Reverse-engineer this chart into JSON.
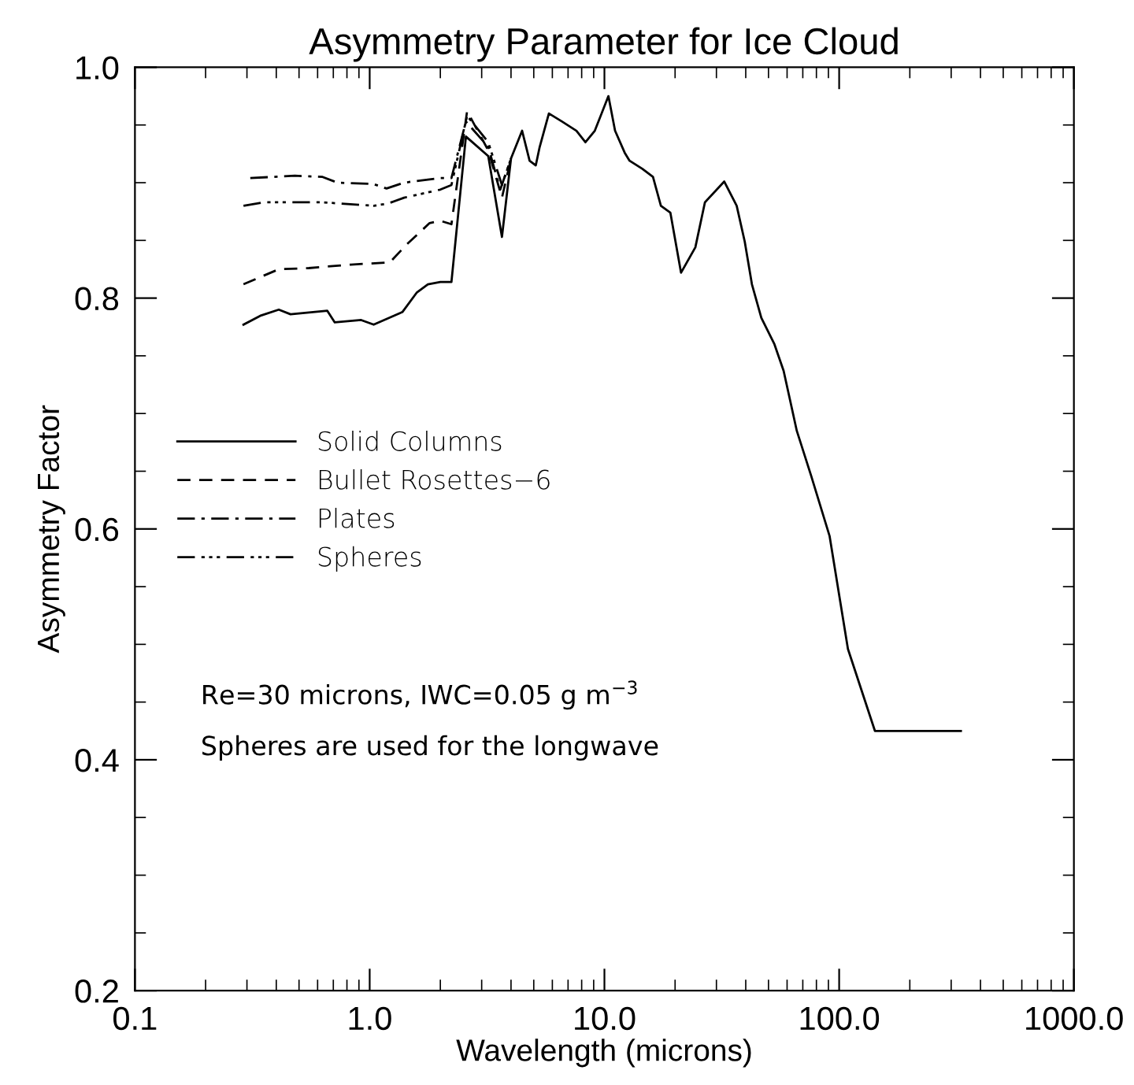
{
  "chart_data": {
    "type": "line",
    "title": "Asymmetry Parameter for Ice Cloud",
    "xlabel": "Wavelength (microns)",
    "ylabel": "Asymmetry Factor",
    "log": "x",
    "xlim": [
      0.1,
      1000
    ],
    "xticks": [
      {
        "value": 0.1,
        "label": "0.1"
      },
      {
        "value": 1,
        "label": "1.0"
      },
      {
        "value": 10,
        "label": "10.0"
      },
      {
        "value": 100,
        "label": "100.0"
      },
      {
        "value": 1000,
        "label": "1000.0"
      }
    ],
    "ylim": [
      0.2,
      1.0
    ],
    "yticks": [
      0.2,
      0.4,
      0.6,
      0.8,
      {
        "value": 1,
        "label": "1.0"
      }
    ],
    "grid": false,
    "legend": "left",
    "annotations": [
      "Re=30 microns, IWC=0.05 g m$^{−3}$",
      "Spheres are used for the longwave"
    ],
    "series": [
      {
        "name": "Solid Columns",
        "color": "#000000",
        "line_style": "solid",
        "x": [
          0.29,
          0.345,
          0.41,
          0.46,
          0.66,
          0.71,
          0.92,
          1.04,
          1.38,
          1.59,
          1.77,
          2.0,
          2.23,
          2.57,
          3.2,
          3.66,
          4.0,
          4.46,
          4.8,
          5.1,
          5.3,
          5.8,
          6.6,
          7.6,
          8.3,
          9.1,
          10.4,
          11.1,
          12.2,
          12.8,
          14.5,
          16.1,
          17.4,
          19.1,
          21.2,
          24.4,
          26.8,
          32.4,
          36.6,
          39.6,
          42.5,
          46.6,
          53,
          58,
          66,
          76,
          91,
          109,
          142,
          330
        ],
        "values": [
          0.777,
          0.785,
          0.79,
          0.786,
          0.789,
          0.779,
          0.781,
          0.777,
          0.788,
          0.805,
          0.812,
          0.814,
          0.814,
          0.94,
          0.923,
          0.853,
          0.921,
          0.945,
          0.919,
          0.915,
          0.931,
          0.96,
          0.953,
          0.945,
          0.935,
          0.945,
          0.975,
          0.945,
          0.926,
          0.919,
          0.912,
          0.905,
          0.88,
          0.874,
          0.822,
          0.844,
          0.883,
          0.901,
          0.88,
          0.849,
          0.812,
          0.783,
          0.76,
          0.737,
          0.685,
          0.646,
          0.594,
          0.496,
          0.425,
          0.425
        ]
      },
      {
        "name": "Bullet Rosettes−6",
        "color": "#000000",
        "line_style": "dashed",
        "x": [
          0.29,
          0.41,
          0.55,
          0.83,
          1.22,
          1.43,
          1.8,
          2.0,
          2.23,
          2.6,
          3.2,
          3.66,
          4.0
        ],
        "values": [
          0.812,
          0.825,
          0.826,
          0.829,
          0.831,
          0.846,
          0.865,
          0.867,
          0.864,
          0.962,
          0.928,
          0.887,
          0.921
        ]
      },
      {
        "name": "Plates",
        "color": "#000000",
        "line_style": "dashdot",
        "x": [
          0.31,
          0.48,
          0.63,
          0.73,
          1.03,
          1.18,
          1.4,
          2.0,
          2.23,
          2.57,
          3.2,
          3.6,
          4.0
        ],
        "values": [
          0.904,
          0.906,
          0.905,
          0.9,
          0.899,
          0.895,
          0.9,
          0.904,
          0.904,
          0.953,
          0.931,
          0.894,
          0.921
        ]
      },
      {
        "name": "Spheres",
        "color": "#000000",
        "line_style": "dashdotdot",
        "x": [
          0.29,
          0.355,
          0.63,
          1.04,
          1.2,
          1.4,
          2.0,
          2.23,
          2.6,
          3.2,
          3.66,
          4.0
        ],
        "values": [
          0.88,
          0.883,
          0.883,
          0.88,
          0.882,
          0.887,
          0.894,
          0.898,
          0.958,
          0.935,
          0.898,
          0.921
        ]
      }
    ]
  }
}
